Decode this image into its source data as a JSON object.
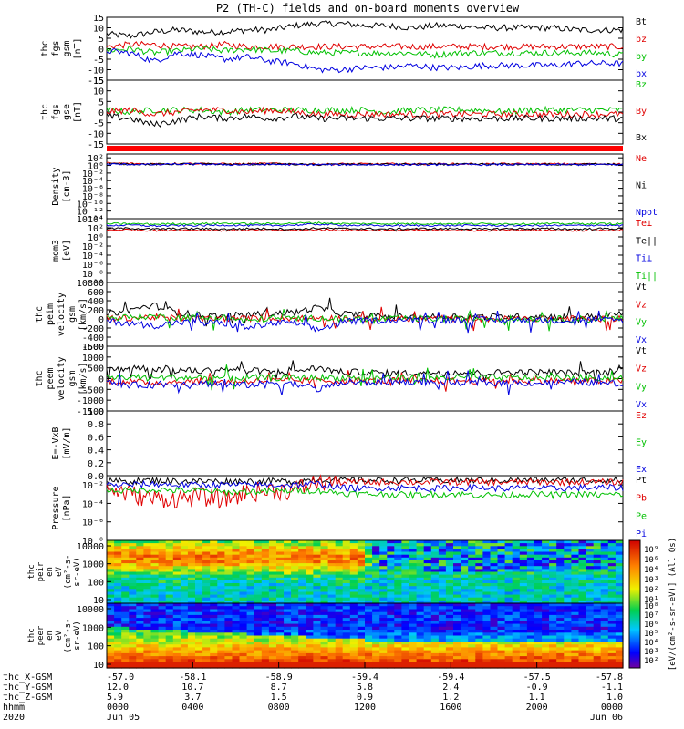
{
  "title": "P2 (TH-C) fields and on-board moments overview",
  "chart_data": [
    {
      "type": "line",
      "ylabel": [
        "thc",
        "fgs",
        "gsm",
        "[nT]"
      ],
      "ylim": [
        -15,
        15
      ],
      "ticks": [
        "15",
        "10",
        "5",
        "0",
        "-5",
        "-10",
        "-15"
      ],
      "tick_values": [
        15,
        10,
        5,
        0,
        -5,
        -10,
        -15
      ],
      "series": [
        {
          "name": "Bt",
          "color": "#000000",
          "values": [
            7,
            6,
            8,
            9,
            8,
            8,
            9,
            9,
            11,
            12,
            12,
            11,
            11,
            10,
            11,
            11,
            10,
            10,
            10,
            10,
            9,
            9,
            9
          ]
        },
        {
          "name": "bz",
          "color": "#e00000",
          "values": [
            1,
            2,
            2,
            1,
            1,
            2,
            1,
            1,
            1,
            1,
            1,
            1,
            1,
            1,
            1,
            1,
            1,
            1,
            1,
            1,
            1,
            1,
            1
          ]
        },
        {
          "name": "by",
          "color": "#00c000",
          "values": [
            -1,
            0,
            -2,
            -1,
            0,
            -1,
            0,
            -1,
            -1,
            -2,
            -2,
            -2,
            -2,
            -2,
            -3,
            -2,
            -2,
            -2,
            -2,
            -2,
            -2,
            -2,
            -3
          ]
        },
        {
          "name": "bx",
          "color": "#0000e0",
          "values": [
            -1,
            -2,
            -6,
            -2,
            -3,
            -5,
            -4,
            -6,
            -7,
            -10,
            -10,
            -9,
            -9,
            -8,
            -9,
            -9,
            -8,
            -8,
            -8,
            -8,
            -7,
            -7,
            -7
          ]
        }
      ]
    },
    {
      "type": "line",
      "ylabel": [
        "thc",
        "fgs",
        "gse",
        "[nT]"
      ],
      "ylim": [
        -15,
        15
      ],
      "ticks": [
        "15",
        "10",
        "5",
        "0",
        "-5",
        "-10",
        "-15"
      ],
      "tick_values": [
        15,
        10,
        5,
        0,
        -5,
        -10,
        -15
      ],
      "series": [
        {
          "name": "Bz",
          "color": "#00c000",
          "values": [
            1,
            0,
            1,
            1,
            1,
            0,
            1,
            1,
            1,
            1,
            1,
            1,
            0,
            1,
            1,
            1,
            1,
            0,
            1,
            1,
            1,
            1,
            1
          ]
        },
        {
          "name": "By",
          "color": "#e00000",
          "values": [
            0,
            1,
            -1,
            0,
            1,
            1,
            0,
            1,
            0,
            -1,
            -1,
            -1,
            -1,
            -1,
            -1,
            -1,
            -1,
            -1,
            -1,
            -1,
            -1,
            -1,
            -1
          ]
        },
        {
          "name": "Bx",
          "color": "#000000",
          "values": [
            -2,
            -3,
            -6,
            -4,
            -2,
            -3,
            -2,
            -3,
            -2,
            -3,
            -3,
            -3,
            -3,
            -3,
            -3,
            -3,
            -3,
            -3,
            -3,
            -3,
            -3,
            -3,
            -3
          ]
        }
      ]
    },
    {
      "type": "line",
      "ylabel": [
        "Density",
        "[cm-3]"
      ],
      "ylim": [
        -14,
        3
      ],
      "scale": "log",
      "ticks": [
        "10²",
        "10⁰",
        "10⁻²",
        "10⁻⁴",
        "10⁻⁶",
        "10⁻⁸",
        "10⁻¹⁰",
        "10⁻¹²",
        "10⁻¹⁴"
      ],
      "tick_values": [
        2,
        0,
        -2,
        -4,
        -6,
        -8,
        -10,
        -12,
        -14
      ],
      "series": [
        {
          "name": "Ne",
          "color": "#e00000",
          "values": [
            0.6,
            0.5,
            0.4,
            0.5,
            0.5,
            0.4,
            0.4,
            0.5,
            0.4,
            0.3,
            0.4,
            0.4,
            0.4,
            0.4,
            0.4,
            0.4,
            0.4,
            0.4,
            0.4,
            0.4,
            0.4,
            0.4,
            0.4
          ]
        },
        {
          "name": "Ni",
          "color": "#000000",
          "values": [
            0.4,
            0.4,
            0.3,
            0.4,
            0.4,
            0.3,
            0.3,
            0.4,
            0.3,
            0.2,
            0.3,
            0.3,
            0.3,
            0.3,
            0.3,
            0.3,
            0.3,
            0.3,
            0.3,
            0.3,
            0.3,
            0.3,
            0.3
          ]
        },
        {
          "name": "Npot",
          "color": "#0000e0",
          "values": [
            0.3,
            0.3,
            0.2,
            0.3,
            0.3,
            0.2,
            0.2,
            0.3,
            0.2,
            0.2,
            0.2,
            0.2,
            0.2,
            0.2,
            0.2,
            0.2,
            0.2,
            0.2,
            0.2,
            0.2,
            0.2,
            0.2,
            0.2
          ]
        }
      ]
    },
    {
      "type": "line",
      "ylabel": [
        "mom3",
        "[eV]"
      ],
      "ylim": [
        -10,
        4
      ],
      "scale": "log",
      "ticks": [
        "10⁴",
        "10²",
        "10⁰",
        "10⁻²",
        "10⁻⁴",
        "10⁻⁶",
        "10⁻⁸",
        "10⁻¹⁰"
      ],
      "tick_values": [
        4,
        2,
        0,
        -2,
        -4,
        -6,
        -8,
        -10
      ],
      "series": [
        {
          "name": "Te⊥",
          "color": "#e00000",
          "values": [
            1.5,
            1.6,
            1.4,
            1.5,
            1.5,
            1.4,
            1.5,
            1.5,
            1.4,
            1.6,
            1.5,
            1.5,
            1.4,
            1.5,
            1.5,
            1.5,
            1.4,
            1.5,
            1.5,
            1.5,
            1.4,
            1.5,
            1.5
          ]
        },
        {
          "name": "Te||",
          "color": "#000000",
          "values": [
            1.8,
            1.9,
            1.7,
            1.8,
            1.8,
            1.7,
            1.8,
            1.8,
            1.7,
            1.9,
            1.8,
            1.8,
            1.7,
            1.8,
            1.8,
            1.8,
            1.7,
            1.8,
            1.8,
            1.8,
            1.7,
            1.8,
            1.8
          ]
        },
        {
          "name": "Ti⊥",
          "color": "#0000e0",
          "values": [
            2.5,
            2.6,
            2.4,
            2.5,
            2.5,
            2.6,
            2.5,
            2.5,
            2.6,
            2.8,
            2.6,
            2.5,
            2.5,
            2.5,
            2.5,
            2.5,
            2.5,
            2.5,
            2.5,
            2.5,
            2.5,
            2.6,
            2.5
          ]
        },
        {
          "name": "Ti||",
          "color": "#00c000",
          "values": [
            2.9,
            2.9,
            2.8,
            2.9,
            2.9,
            3.0,
            2.9,
            2.9,
            3.0,
            3.1,
            2.9,
            2.9,
            2.9,
            2.9,
            2.9,
            2.9,
            2.9,
            2.9,
            2.9,
            2.9,
            2.9,
            2.9,
            2.9
          ]
        }
      ]
    },
    {
      "type": "line",
      "ylabel": [
        "thc",
        "peim",
        "velocity",
        "gsm",
        "[km/s]"
      ],
      "ylim": [
        -600,
        800
      ],
      "ticks": [
        "800",
        "600",
        "400",
        "200",
        "0",
        "-200",
        "-400",
        "-600"
      ],
      "tick_values": [
        800,
        600,
        400,
        200,
        0,
        -200,
        -400,
        -600
      ],
      "series": [
        {
          "name": "Vt",
          "color": "#000000",
          "values": [
            100,
            200,
            300,
            150,
            80,
            60,
            100,
            120,
            150,
            250,
            120,
            80,
            60,
            50,
            50,
            60,
            50,
            50,
            60,
            50,
            50,
            60,
            120
          ]
        },
        {
          "name": "Vz",
          "color": "#e00000",
          "values": [
            0,
            20,
            40,
            20,
            0,
            10,
            10,
            20,
            10,
            30,
            10,
            0,
            0,
            0,
            10,
            0,
            0,
            0,
            0,
            10,
            0,
            0,
            20
          ]
        },
        {
          "name": "Vy",
          "color": "#00c000",
          "values": [
            20,
            40,
            60,
            30,
            20,
            30,
            -50,
            20,
            10,
            20,
            0,
            0,
            0,
            10,
            0,
            0,
            10,
            0,
            0,
            0,
            0,
            0,
            10
          ]
        },
        {
          "name": "Vx",
          "color": "#0000e0",
          "values": [
            -50,
            -100,
            -150,
            -80,
            -60,
            -100,
            -200,
            -100,
            -80,
            -250,
            -60,
            -40,
            -30,
            -20,
            -30,
            -30,
            -20,
            -30,
            -20,
            -30,
            -20,
            -20,
            -40
          ]
        }
      ]
    },
    {
      "type": "line",
      "ylabel": [
        "thc",
        "peem",
        "velocity",
        "gsm",
        "[km/s]"
      ],
      "ylim": [
        -1500,
        1500
      ],
      "ticks": [
        "1500",
        "1000",
        "500",
        "0",
        "-500",
        "-1000",
        "-1500"
      ],
      "tick_values": [
        1500,
        1000,
        500,
        0,
        -500,
        -1000,
        -1500
      ],
      "series": [
        {
          "name": "Vt",
          "color": "#000000",
          "values": [
            400,
            500,
            450,
            400,
            350,
            450,
            400,
            300,
            350,
            500,
            300,
            300,
            250,
            250,
            300,
            300,
            250,
            300,
            300,
            300,
            250,
            300,
            400
          ]
        },
        {
          "name": "Vz",
          "color": "#e00000",
          "values": [
            -100,
            -150,
            -200,
            -150,
            -100,
            -150,
            -100,
            -100,
            -100,
            -100,
            -100,
            -100,
            -100,
            -100,
            -100,
            -100,
            -100,
            -100,
            -100,
            -100,
            -100,
            -100,
            -100
          ]
        },
        {
          "name": "Vy",
          "color": "#00c000",
          "values": [
            50,
            60,
            60,
            50,
            40,
            50,
            40,
            40,
            40,
            50,
            40,
            40,
            40,
            40,
            40,
            40,
            40,
            40,
            40,
            40,
            40,
            40,
            40
          ]
        },
        {
          "name": "Vx",
          "color": "#0000e0",
          "values": [
            -200,
            -300,
            -300,
            -250,
            -200,
            -300,
            -300,
            -200,
            -200,
            -500,
            -200,
            -200,
            -150,
            -150,
            -200,
            -200,
            -200,
            -200,
            -200,
            -200,
            -150,
            -200,
            -250
          ]
        }
      ]
    },
    {
      "type": "line",
      "ylabel": [
        "E=-VxB",
        "[mV/m]"
      ],
      "ylim": [
        0,
        1
      ],
      "ticks": [
        "1.0",
        "0.8",
        "0.6",
        "0.4",
        "0.2",
        "0.0"
      ],
      "tick_values": [
        1,
        0.8,
        0.6,
        0.4,
        0.2,
        0
      ],
      "series": [
        {
          "name": "Ez",
          "color": "#e00000",
          "values": []
        },
        {
          "name": "Ey",
          "color": "#00c000",
          "values": []
        },
        {
          "name": "Ex",
          "color": "#0000e0",
          "values": []
        }
      ]
    },
    {
      "type": "line",
      "ylabel": [
        "Pressure",
        "[nPa]"
      ],
      "ylim": [
        -8,
        -1
      ],
      "scale": "log",
      "ticks": [
        "10⁻²",
        "10⁻⁴",
        "10⁻⁶",
        "10⁻⁸"
      ],
      "tick_values": [
        -2,
        -4,
        -6,
        -8
      ],
      "series": [
        {
          "name": "Pt",
          "color": "#000000",
          "values": [
            -1.6,
            -1.6,
            -1.5,
            -1.6,
            -1.6,
            -1.6,
            -1.6,
            -1.6,
            -1.6,
            -1.4,
            -1.5,
            -1.5,
            -1.5,
            -1.5,
            -1.5,
            -1.5,
            -1.5,
            -1.5,
            -1.5,
            -1.5,
            -1.5,
            -1.5,
            -1.5
          ]
        },
        {
          "name": "Pb",
          "color": "#e00000",
          "values": [
            -2.4,
            -3.0,
            -3.5,
            -3.5,
            -3.3,
            -3.6,
            -2.8,
            -2.6,
            -2.6,
            -1.6,
            -1.7,
            -1.7,
            -1.7,
            -1.7,
            -1.7,
            -1.7,
            -1.7,
            -1.7,
            -1.7,
            -1.7,
            -1.7,
            -1.7,
            -1.7
          ]
        },
        {
          "name": "Pe",
          "color": "#00c000",
          "values": [
            -2.6,
            -2.6,
            -2.5,
            -2.6,
            -2.6,
            -2.8,
            -2.7,
            -2.7,
            -2.6,
            -2.6,
            -2.9,
            -3.0,
            -3.0,
            -3.1,
            -3.0,
            -3.0,
            -3.1,
            -3.1,
            -3.0,
            -3.1,
            -3.0,
            -3.1,
            -3.0
          ]
        },
        {
          "name": "Pi",
          "color": "#0000e0",
          "values": [
            -2.0,
            -2.0,
            -1.9,
            -2.0,
            -2.0,
            -2.0,
            -2.0,
            -2.0,
            -2.0,
            -1.9,
            -2.3,
            -2.4,
            -2.3,
            -2.3,
            -2.4,
            -2.3,
            -2.3,
            -2.4,
            -2.3,
            -2.4,
            -2.3,
            -2.3,
            -2.3
          ]
        }
      ]
    },
    {
      "type": "heatmap",
      "ylabel": [
        "thc",
        "peir",
        "en",
        "eV",
        "(cm²-s-",
        "sr-eV)"
      ],
      "yscale": "log",
      "ylim": [
        10,
        10000
      ],
      "ticks": [
        "10000",
        "1000",
        "100",
        "10"
      ],
      "tick_values": [
        10000,
        1000,
        100,
        10
      ]
    },
    {
      "type": "heatmap",
      "ylabel": [
        "thc",
        "peer",
        "en",
        "eV",
        "(cm²-s-",
        "sr-eV)"
      ],
      "yscale": "log",
      "ylim": [
        10,
        10000
      ],
      "ticks": [
        "10000",
        "1000",
        "100",
        "10"
      ],
      "tick_values": [
        10000,
        1000,
        100,
        10
      ]
    }
  ],
  "colorbar": {
    "label": "[eV/(cm²-s-sr-eV)] (All Qs)",
    "ticks_upper": [
      "10⁹",
      "10⁶",
      "10⁴",
      "10³",
      "10²",
      "10¹"
    ],
    "ticks_lower": [
      "10⁸",
      "10⁷",
      "10⁶",
      "10⁵",
      "10⁴",
      "10³",
      "10²"
    ]
  },
  "xaxis": {
    "rows": [
      {
        "label": "thc_X-GSM",
        "values": [
          "-57.0",
          "-58.1",
          "-58.9",
          "-59.4",
          "-59.4",
          "-57.5",
          "-57.8"
        ]
      },
      {
        "label": "thc_Y-GSM",
        "values": [
          "12.0",
          "10.7",
          "8.7",
          "5.8",
          "2.4",
          "-0.9",
          "-1.1"
        ]
      },
      {
        "label": "thc_Z-GSM",
        "values": [
          "5.9",
          "3.7",
          "1.5",
          "0.9",
          "1.2",
          "1.1",
          "1.0"
        ]
      },
      {
        "label": "hhmm",
        "values": [
          "0000",
          "0400",
          "0800",
          "1200",
          "1600",
          "2000",
          "0000"
        ]
      },
      {
        "label": "2020",
        "values": [
          "Jun 05",
          "",
          "",
          "",
          "",
          "",
          "Jun 06"
        ]
      }
    ]
  }
}
